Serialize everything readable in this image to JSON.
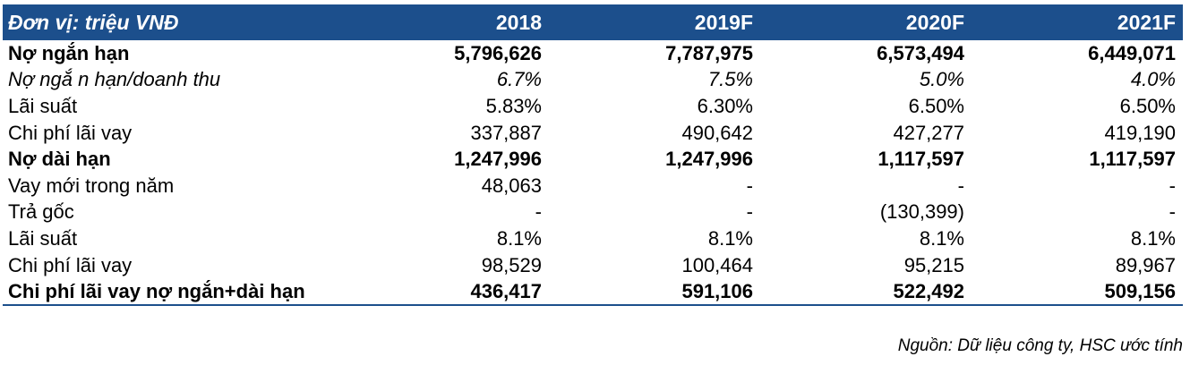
{
  "header": {
    "label": "Đơn vị: triệu VNĐ",
    "years": [
      "2018",
      "2019F",
      "2020F",
      "2021F"
    ]
  },
  "rows": [
    {
      "label": "Nợ ngắn hạn",
      "values": [
        "5,796,626",
        "7,787,975",
        "6,573,494",
        "6,449,071"
      ]
    },
    {
      "label": "Nợ ngắ n hạn/doanh thu",
      "values": [
        "6.7%",
        "7.5%",
        "5.0%",
        "4.0%"
      ]
    },
    {
      "label": "Lãi suất",
      "values": [
        "5.83%",
        "6.30%",
        "6.50%",
        "6.50%"
      ]
    },
    {
      "label": "Chi phí lãi vay",
      "values": [
        "337,887",
        "490,642",
        "427,277",
        "419,190"
      ]
    },
    {
      "label": "Nợ dài hạn",
      "values": [
        "1,247,996",
        "1,247,996",
        "1,117,597",
        "1,117,597"
      ]
    },
    {
      "label": "Vay mới trong năm",
      "values": [
        "48,063",
        "-",
        "-",
        "-"
      ]
    },
    {
      "label": "Trả gốc",
      "values": [
        "-",
        "-",
        "(130,399)",
        "-"
      ]
    },
    {
      "label": "Lãi suất",
      "values": [
        "8.1%",
        "8.1%",
        "8.1%",
        "8.1%"
      ]
    },
    {
      "label": "Chi phí lãi vay",
      "values": [
        "98,529",
        "100,464",
        "95,215",
        "89,967"
      ]
    },
    {
      "label": "Chi phí lãi vay nợ ngắn+dài hạn",
      "values": [
        "436,417",
        "591,106",
        "522,492",
        "509,156"
      ]
    }
  ],
  "source": "Nguồn: Dữ liệu công ty, HSC ước tính"
}
